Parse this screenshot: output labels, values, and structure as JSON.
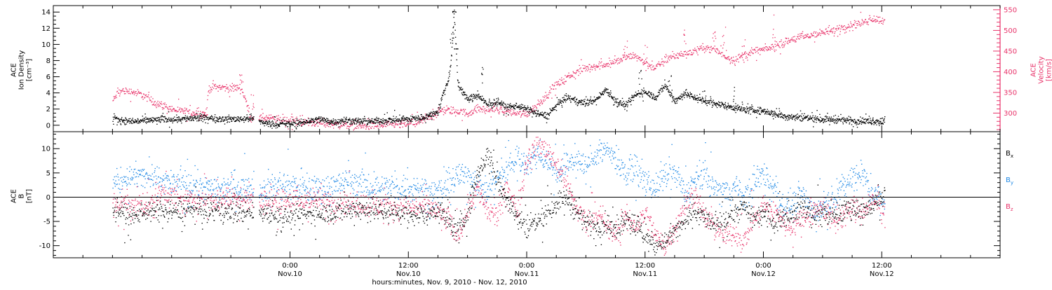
{
  "chart_data": [
    {
      "type": "scatter",
      "panel": "plasma",
      "ylabel_left": [
        "ACE",
        "Ion Density",
        "[cm⁻³]"
      ],
      "ylabel_right": [
        "ACE",
        "Velocity",
        "[km/s]"
      ],
      "ylim_left": [
        -0.8,
        14.8
      ],
      "ylim_right": [
        255,
        560
      ],
      "yticks_left": [
        0,
        2,
        4,
        6,
        8,
        10,
        12,
        14
      ],
      "yticks_right": [
        300,
        350,
        400,
        450,
        500,
        550
      ],
      "ytick_labels_left": [
        "0",
        "2",
        "4",
        "6",
        "8",
        "10",
        "12",
        "14"
      ],
      "ytick_labels_right": [
        "300",
        "350",
        "400",
        "450",
        "500",
        "550"
      ],
      "colors": {
        "density": "#000000",
        "velocity": "#e8336a"
      },
      "series": [
        {
          "axis": "left",
          "color": "#000000",
          "x": [
            -18,
            -16,
            -14,
            -12,
            -10,
            -8,
            -6,
            -4,
            -2.4,
            -1.2,
            0,
            1,
            2,
            3,
            4,
            6,
            8,
            10,
            12,
            13,
            14,
            14.5,
            15,
            15.5,
            16,
            16.3,
            16.6,
            17,
            18,
            19,
            20,
            21,
            22,
            23,
            24,
            25,
            26,
            27,
            28,
            29,
            30,
            31,
            32,
            33,
            34,
            35,
            36,
            37,
            38,
            39,
            40,
            42,
            44,
            46,
            48,
            50,
            52,
            54,
            56,
            58,
            60,
            60.3
          ],
          "y": [
            0.8,
            0.5,
            0.7,
            0.8,
            0.9,
            0.9,
            0.8,
            0.9,
            0.3,
            0.2,
            0.2,
            0.3,
            0.6,
            0.8,
            0.5,
            0.6,
            0.5,
            0.7,
            0.8,
            0.9,
            1.2,
            1.5,
            1.8,
            4.0,
            5.5,
            8.0,
            14.0,
            5.0,
            3.2,
            3.8,
            2.5,
            3.0,
            2.2,
            2.5,
            2.0,
            1.5,
            1.2,
            2.5,
            3.5,
            3.0,
            2.8,
            3.2,
            4.5,
            3.0,
            2.5,
            3.8,
            4.2,
            3.5,
            5.0,
            3.0,
            4.0,
            3.0,
            2.5,
            2.0,
            1.8,
            1.2,
            1.0,
            0.8,
            0.7,
            0.6,
            0.5,
            0.6
          ],
          "noise": 0.35,
          "spikes": [
            [
              16.6,
              14.2
            ],
            [
              16.4,
              11.5
            ],
            [
              16.8,
              9.5
            ],
            [
              19.5,
              8.5
            ],
            [
              35.5,
              7.0
            ],
            [
              38.5,
              6.2
            ],
            [
              42,
              5.2
            ],
            [
              45,
              4.8
            ]
          ]
        },
        {
          "axis": "right",
          "color": "#e8336a",
          "x": [
            -18,
            -17.5,
            -17,
            -16,
            -15,
            -14,
            -13,
            -12,
            -11,
            -10,
            -9,
            -8.5,
            -8.3,
            -7.5,
            -6.5,
            -6,
            -5.5,
            -5,
            -4,
            -3,
            -2,
            -1,
            0,
            0.5,
            1,
            2,
            3,
            4,
            5,
            6,
            7,
            8,
            10,
            12,
            13,
            14,
            15,
            16,
            17,
            18,
            19,
            20,
            21,
            22,
            23,
            24,
            25,
            26,
            27,
            28,
            29,
            30,
            31,
            32,
            33,
            34,
            35,
            36,
            37,
            38,
            39,
            40,
            41,
            42,
            43,
            44,
            45,
            46,
            47,
            48,
            49,
            50,
            51,
            52,
            53,
            54,
            55,
            56,
            57,
            58,
            59,
            60,
            60.3
          ],
          "y": [
            330,
            350,
            355,
            352,
            345,
            330,
            320,
            310,
            305,
            302,
            300,
            300,
            360,
            365,
            362,
            360,
            362,
            365,
            290,
            290,
            288,
            285,
            283,
            282,
            280,
            278,
            277,
            275,
            273,
            272,
            270,
            270,
            272,
            275,
            278,
            290,
            305,
            308,
            305,
            300,
            312,
            308,
            310,
            305,
            300,
            300,
            320,
            345,
            370,
            385,
            400,
            410,
            415,
            420,
            425,
            435,
            440,
            420,
            410,
            430,
            440,
            445,
            450,
            460,
            455,
            440,
            430,
            440,
            450,
            455,
            460,
            470,
            480,
            485,
            490,
            495,
            500,
            510,
            515,
            520,
            530,
            525,
            530
          ],
          "noise": 8,
          "spikes": [
            [
              -5,
              410
            ],
            [
              -3.8,
              395
            ],
            [
              -8.6,
              290
            ],
            [
              34,
              480
            ],
            [
              36,
              470
            ],
            [
              40,
              520
            ],
            [
              43,
              500
            ],
            [
              44,
              510
            ],
            [
              46,
              480
            ],
            [
              49,
              540
            ]
          ]
        }
      ]
    },
    {
      "type": "scatter",
      "panel": "magnetic",
      "ylabel_left": [
        "ACE",
        "B",
        "[nT]"
      ],
      "ylim": [
        -12.5,
        13.5
      ],
      "yticks": [
        -10,
        -5,
        0,
        5,
        10
      ],
      "ytick_labels": [
        "-10",
        "-5",
        "0",
        "5",
        "10"
      ],
      "zero_line": true,
      "legend": {
        "placement": "right",
        "entries": [
          "Bx",
          "By",
          "Bz"
        ]
      },
      "legend_text": [
        {
          "main": "B",
          "sub": "x"
        },
        {
          "main": "B",
          "sub": "y"
        },
        {
          "main": "B",
          "sub": "z"
        }
      ],
      "series": [
        {
          "name": "Bx",
          "color": "#000000",
          "x": [
            -18,
            -17,
            -16,
            -15.5,
            -15,
            -14,
            -12,
            -10,
            -8,
            -6,
            -4,
            -2,
            -1,
            0,
            1,
            2,
            4,
            6,
            8,
            10,
            12,
            13,
            14,
            14.5,
            15,
            16,
            17,
            18,
            19,
            20,
            20.5,
            21,
            22,
            23,
            24,
            25,
            26,
            27,
            28,
            29,
            30,
            31,
            32,
            33,
            34,
            35,
            36,
            37,
            38,
            39,
            40,
            41,
            42,
            43,
            44,
            45,
            46,
            47,
            48,
            49,
            50,
            51,
            52,
            53,
            54,
            55,
            56,
            57,
            58,
            59,
            60,
            60.3
          ],
          "y": [
            -2,
            -3,
            -4.5,
            -3.5,
            -2.5,
            -3,
            -2.8,
            -2.5,
            -2.8,
            -3,
            -3.2,
            -3,
            -4,
            -3.8,
            -3.5,
            -3.3,
            -3,
            -2.5,
            -2.5,
            -2.8,
            -3.5,
            -3.5,
            -3.3,
            -2.5,
            -2,
            -5,
            -7,
            -3,
            5,
            9,
            7,
            3,
            0,
            -4,
            -6,
            -5,
            -3,
            -1,
            0,
            -3,
            -5,
            -6,
            -5,
            -7,
            -4,
            -6,
            -8,
            -10,
            -9,
            -7,
            -5,
            -3,
            -4,
            -6,
            -5,
            -3,
            -2,
            -4,
            -3,
            -5,
            -4,
            -3,
            -2,
            -4,
            -3,
            -4,
            -3,
            -2,
            -3,
            -2,
            0,
            1
          ],
          "noise": 1.8
        },
        {
          "name": "By",
          "color": "#1e88e5",
          "x": [
            -18,
            -17,
            -16,
            -15,
            -14,
            -13,
            -12,
            -11,
            -10,
            -9,
            -8,
            -7,
            -6,
            -5,
            -4,
            -3,
            -2,
            -1,
            0,
            1,
            2,
            3,
            4,
            6,
            7,
            8,
            10,
            12,
            14,
            14.5,
            15,
            16,
            17,
            18,
            19,
            20,
            21,
            22,
            23,
            24,
            25,
            26,
            27,
            28,
            29,
            30,
            31,
            32,
            33,
            34,
            35,
            36,
            37,
            38,
            39,
            40,
            41,
            42,
            43,
            44,
            45,
            46,
            47,
            48,
            49,
            50,
            51,
            52,
            53,
            54,
            55,
            56,
            57,
            58,
            59,
            60,
            60.3
          ],
          "y": [
            3,
            3.5,
            4.5,
            4.3,
            4,
            3.5,
            3,
            2.8,
            2.5,
            2.2,
            2,
            2,
            2.5,
            2.3,
            2,
            1.8,
            2,
            2.5,
            2.5,
            2,
            1.8,
            1.8,
            2,
            3.5,
            3,
            2.5,
            2,
            1.8,
            2,
            1.5,
            1,
            3,
            4,
            5,
            3,
            1,
            4,
            6,
            8,
            7,
            9,
            8,
            5,
            7,
            8,
            6,
            9,
            10,
            8,
            5,
            6,
            3,
            2,
            4,
            5,
            1,
            3,
            5,
            2,
            1,
            2,
            0,
            3,
            5,
            2,
            -2,
            -1,
            1,
            -3,
            -2,
            0,
            2,
            4,
            5,
            1,
            -1,
            -2
          ],
          "noise": 2.2
        },
        {
          "name": "Bz",
          "color": "#e8336a",
          "x": [
            -18,
            -17,
            -16,
            -15,
            -14,
            -13,
            -12,
            -11,
            -10,
            -8,
            -6,
            -4,
            -2,
            -1,
            0,
            1,
            2,
            4,
            6,
            8,
            10,
            12,
            14,
            14.5,
            15,
            16,
            17,
            18,
            19,
            20,
            21,
            22,
            23,
            24,
            25,
            26,
            27,
            28,
            29,
            30,
            31,
            32,
            33,
            34,
            35,
            36,
            37,
            38,
            39,
            40,
            41,
            42,
            43,
            44,
            45,
            46,
            47,
            48,
            49,
            50,
            51,
            52,
            53,
            54,
            55,
            56,
            57,
            58,
            59,
            60,
            60.3
          ],
          "y": [
            -1,
            -1.5,
            -2,
            -1,
            -1.5,
            1,
            0.5,
            -1,
            -0.5,
            -0.5,
            -0.3,
            -0.5,
            -0.8,
            -1,
            -0.8,
            -1,
            -0.5,
            -1,
            -1,
            -1.5,
            -2,
            -2,
            -2,
            -2.5,
            -3,
            -5,
            -8,
            -2,
            2,
            -3,
            -4,
            2,
            -3,
            8,
            11,
            10,
            7,
            3,
            -2,
            -5,
            -3,
            -6,
            -8,
            -4,
            -6,
            -3,
            -8,
            -10,
            -6,
            -2,
            1,
            -4,
            -6,
            -8,
            -7,
            -9,
            -4,
            -2,
            -3,
            -5,
            -6,
            -4,
            -3,
            -2,
            -5,
            -4,
            -2,
            -3,
            -1,
            -2,
            -4
          ],
          "noise": 2.0
        }
      ]
    }
  ],
  "x_axis": {
    "range": [
      -24,
      72
    ],
    "unit_note": "hours relative to 0:00 Nov.10",
    "ticks": [
      {
        "x": 0,
        "time": "0:00",
        "date": "Nov.10"
      },
      {
        "x": 12,
        "time": "12:00",
        "date": "Nov.10"
      },
      {
        "x": 24,
        "time": "0:00",
        "date": "Nov.11"
      },
      {
        "x": 36,
        "time": "12:00",
        "date": "Nov.11"
      },
      {
        "x": 48,
        "time": "0:00",
        "date": "Nov.12"
      },
      {
        "x": 60,
        "time": "12:00",
        "date": "Nov.12"
      }
    ],
    "minor_step": 3,
    "label": "hours:minutes, Nov.  9, 2010 - Nov. 12, 2010"
  }
}
